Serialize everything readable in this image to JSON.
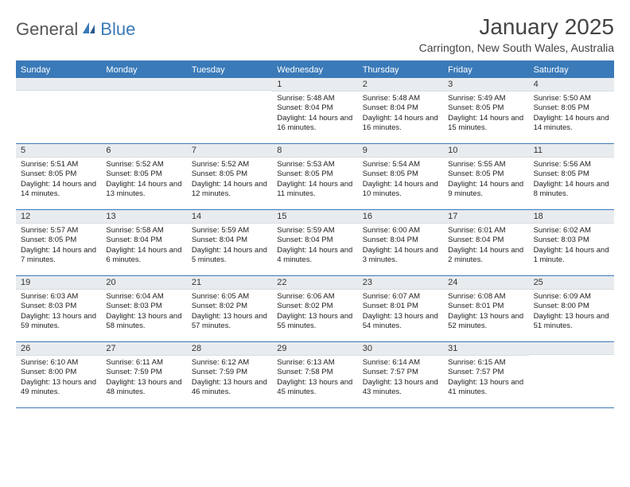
{
  "logo": {
    "part1": "General",
    "part2": "Blue"
  },
  "title": "January 2025",
  "location": "Carrington, New South Wales, Australia",
  "colors": {
    "accent": "#3a7ab8",
    "header_bg": "#3a7ab8",
    "header_text": "#ffffff",
    "daynum_bg": "#e8ecef",
    "body_text": "#222222",
    "page_bg": "#ffffff"
  },
  "day_names": [
    "Sunday",
    "Monday",
    "Tuesday",
    "Wednesday",
    "Thursday",
    "Friday",
    "Saturday"
  ],
  "weeks": [
    [
      null,
      null,
      null,
      {
        "d": "1",
        "sunrise": "5:48 AM",
        "sunset": "8:04 PM",
        "daylight": "14 hours and 16 minutes."
      },
      {
        "d": "2",
        "sunrise": "5:48 AM",
        "sunset": "8:04 PM",
        "daylight": "14 hours and 16 minutes."
      },
      {
        "d": "3",
        "sunrise": "5:49 AM",
        "sunset": "8:05 PM",
        "daylight": "14 hours and 15 minutes."
      },
      {
        "d": "4",
        "sunrise": "5:50 AM",
        "sunset": "8:05 PM",
        "daylight": "14 hours and 14 minutes."
      }
    ],
    [
      {
        "d": "5",
        "sunrise": "5:51 AM",
        "sunset": "8:05 PM",
        "daylight": "14 hours and 14 minutes."
      },
      {
        "d": "6",
        "sunrise": "5:52 AM",
        "sunset": "8:05 PM",
        "daylight": "14 hours and 13 minutes."
      },
      {
        "d": "7",
        "sunrise": "5:52 AM",
        "sunset": "8:05 PM",
        "daylight": "14 hours and 12 minutes."
      },
      {
        "d": "8",
        "sunrise": "5:53 AM",
        "sunset": "8:05 PM",
        "daylight": "14 hours and 11 minutes."
      },
      {
        "d": "9",
        "sunrise": "5:54 AM",
        "sunset": "8:05 PM",
        "daylight": "14 hours and 10 minutes."
      },
      {
        "d": "10",
        "sunrise": "5:55 AM",
        "sunset": "8:05 PM",
        "daylight": "14 hours and 9 minutes."
      },
      {
        "d": "11",
        "sunrise": "5:56 AM",
        "sunset": "8:05 PM",
        "daylight": "14 hours and 8 minutes."
      }
    ],
    [
      {
        "d": "12",
        "sunrise": "5:57 AM",
        "sunset": "8:05 PM",
        "daylight": "14 hours and 7 minutes."
      },
      {
        "d": "13",
        "sunrise": "5:58 AM",
        "sunset": "8:04 PM",
        "daylight": "14 hours and 6 minutes."
      },
      {
        "d": "14",
        "sunrise": "5:59 AM",
        "sunset": "8:04 PM",
        "daylight": "14 hours and 5 minutes."
      },
      {
        "d": "15",
        "sunrise": "5:59 AM",
        "sunset": "8:04 PM",
        "daylight": "14 hours and 4 minutes."
      },
      {
        "d": "16",
        "sunrise": "6:00 AM",
        "sunset": "8:04 PM",
        "daylight": "14 hours and 3 minutes."
      },
      {
        "d": "17",
        "sunrise": "6:01 AM",
        "sunset": "8:04 PM",
        "daylight": "14 hours and 2 minutes."
      },
      {
        "d": "18",
        "sunrise": "6:02 AM",
        "sunset": "8:03 PM",
        "daylight": "14 hours and 1 minute."
      }
    ],
    [
      {
        "d": "19",
        "sunrise": "6:03 AM",
        "sunset": "8:03 PM",
        "daylight": "13 hours and 59 minutes."
      },
      {
        "d": "20",
        "sunrise": "6:04 AM",
        "sunset": "8:03 PM",
        "daylight": "13 hours and 58 minutes."
      },
      {
        "d": "21",
        "sunrise": "6:05 AM",
        "sunset": "8:02 PM",
        "daylight": "13 hours and 57 minutes."
      },
      {
        "d": "22",
        "sunrise": "6:06 AM",
        "sunset": "8:02 PM",
        "daylight": "13 hours and 55 minutes."
      },
      {
        "d": "23",
        "sunrise": "6:07 AM",
        "sunset": "8:01 PM",
        "daylight": "13 hours and 54 minutes."
      },
      {
        "d": "24",
        "sunrise": "6:08 AM",
        "sunset": "8:01 PM",
        "daylight": "13 hours and 52 minutes."
      },
      {
        "d": "25",
        "sunrise": "6:09 AM",
        "sunset": "8:00 PM",
        "daylight": "13 hours and 51 minutes."
      }
    ],
    [
      {
        "d": "26",
        "sunrise": "6:10 AM",
        "sunset": "8:00 PM",
        "daylight": "13 hours and 49 minutes."
      },
      {
        "d": "27",
        "sunrise": "6:11 AM",
        "sunset": "7:59 PM",
        "daylight": "13 hours and 48 minutes."
      },
      {
        "d": "28",
        "sunrise": "6:12 AM",
        "sunset": "7:59 PM",
        "daylight": "13 hours and 46 minutes."
      },
      {
        "d": "29",
        "sunrise": "6:13 AM",
        "sunset": "7:58 PM",
        "daylight": "13 hours and 45 minutes."
      },
      {
        "d": "30",
        "sunrise": "6:14 AM",
        "sunset": "7:57 PM",
        "daylight": "13 hours and 43 minutes."
      },
      {
        "d": "31",
        "sunrise": "6:15 AM",
        "sunset": "7:57 PM",
        "daylight": "13 hours and 41 minutes."
      },
      null
    ]
  ],
  "labels": {
    "sunrise": "Sunrise:",
    "sunset": "Sunset:",
    "daylight": "Daylight:"
  }
}
